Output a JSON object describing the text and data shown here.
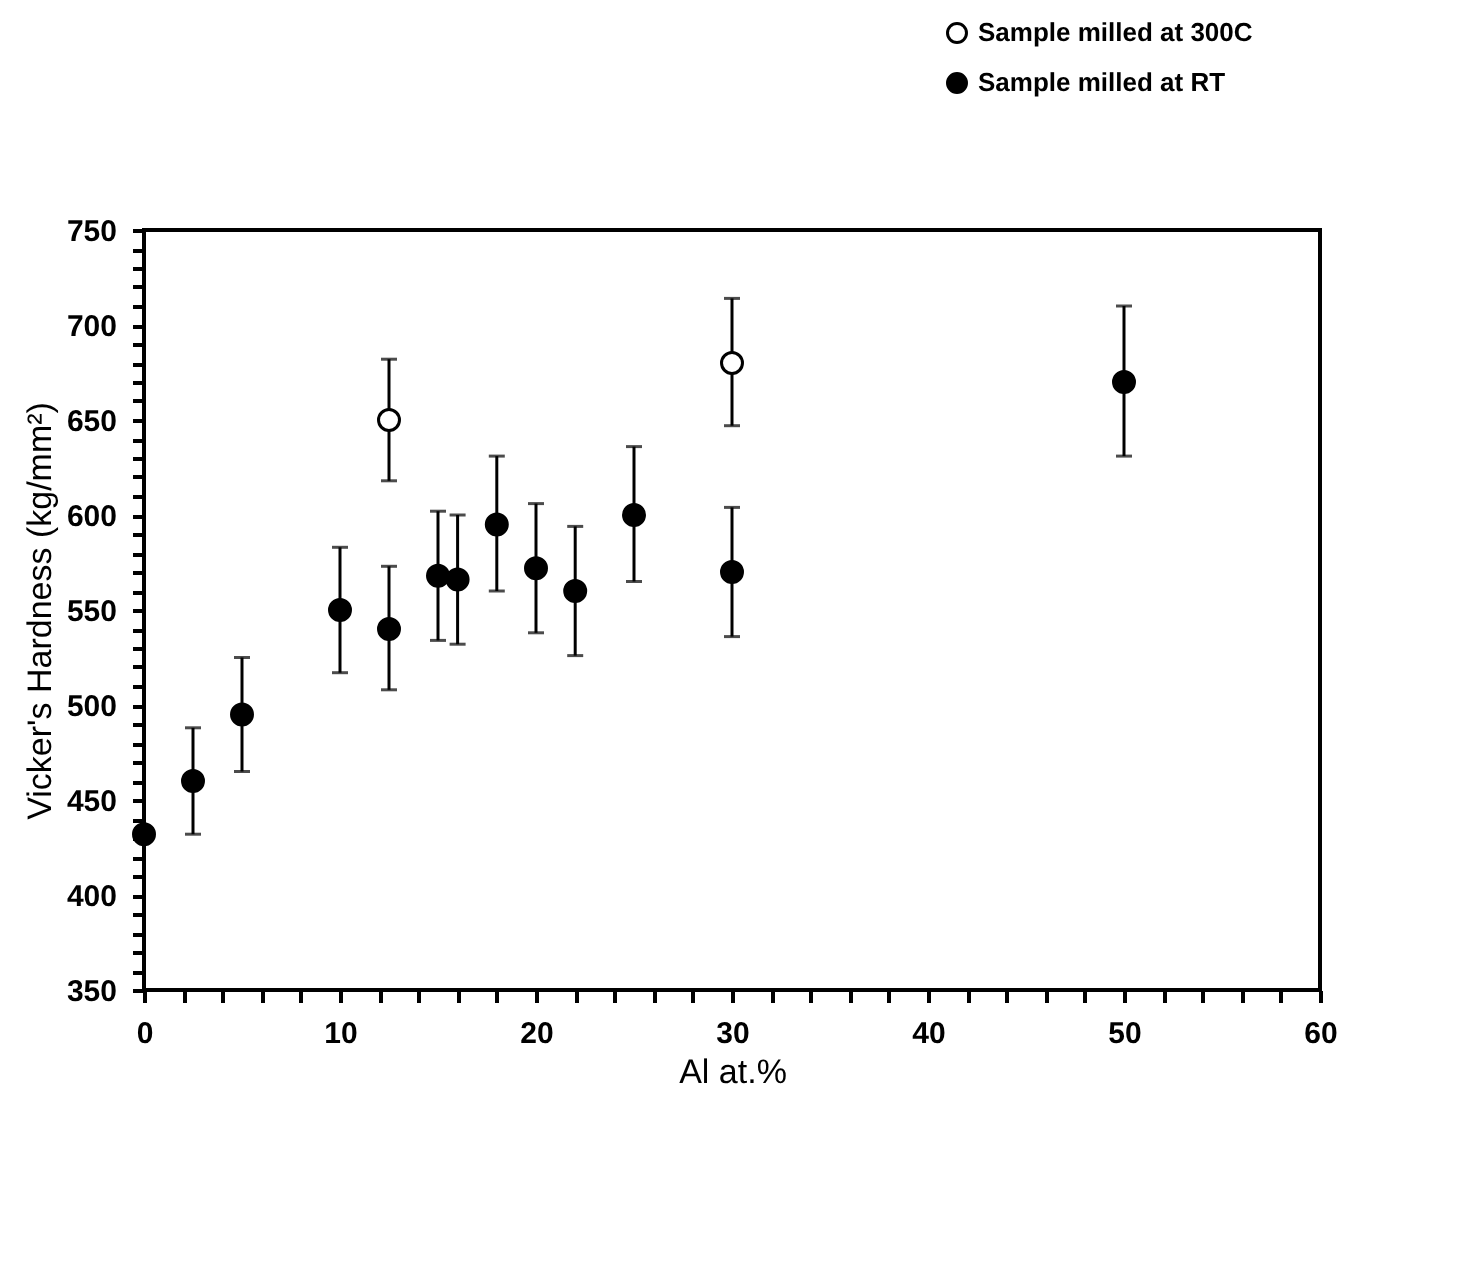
{
  "chart_data": {
    "type": "scatter",
    "xlabel": "Al at.%",
    "ylabel": "Vicker's Hardness (kg/mm²)",
    "xlim": [
      0,
      60
    ],
    "ylim": [
      350,
      750
    ],
    "xticks": [
      0,
      {
        "value": 2,
        "label": null
      },
      {
        "value": 4,
        "label": null
      },
      {
        "value": 6,
        "label": null
      },
      {
        "value": 8,
        "label": null
      },
      10,
      {
        "value": 12,
        "label": null
      },
      {
        "value": 14,
        "label": null
      },
      {
        "value": 16,
        "label": null
      },
      {
        "value": 18,
        "label": null
      },
      20,
      {
        "value": 22,
        "label": null
      },
      {
        "value": 24,
        "label": null
      },
      {
        "value": 26,
        "label": null
      },
      {
        "value": 28,
        "label": null
      },
      30,
      {
        "value": 32,
        "label": null
      },
      {
        "value": 34,
        "label": null
      },
      {
        "value": 36,
        "label": null
      },
      {
        "value": 38,
        "label": null
      },
      40,
      {
        "value": 42,
        "label": null
      },
      {
        "value": 44,
        "label": null
      },
      {
        "value": 46,
        "label": null
      },
      {
        "value": 48,
        "label": null
      },
      50,
      {
        "value": 52,
        "label": null
      },
      {
        "value": 54,
        "label": null
      },
      {
        "value": 56,
        "label": null
      },
      {
        "value": 58,
        "label": null
      },
      60
    ],
    "yticks": [
      350,
      {
        "value": 360,
        "label": null
      },
      {
        "value": 370,
        "label": null
      },
      {
        "value": 380,
        "label": null
      },
      {
        "value": 390,
        "label": null
      },
      400,
      {
        "value": 410,
        "label": null
      },
      {
        "value": 420,
        "label": null
      },
      {
        "value": 430,
        "label": null
      },
      {
        "value": 440,
        "label": null
      },
      450,
      {
        "value": 460,
        "label": null
      },
      {
        "value": 470,
        "label": null
      },
      {
        "value": 480,
        "label": null
      },
      {
        "value": 490,
        "label": null
      },
      500,
      {
        "value": 510,
        "label": null
      },
      {
        "value": 520,
        "label": null
      },
      {
        "value": 530,
        "label": null
      },
      {
        "value": 540,
        "label": null
      },
      550,
      {
        "value": 560,
        "label": null
      },
      {
        "value": 570,
        "label": null
      },
      {
        "value": 580,
        "label": null
      },
      {
        "value": 590,
        "label": null
      },
      600,
      {
        "value": 610,
        "label": null
      },
      {
        "value": 620,
        "label": null
      },
      {
        "value": 630,
        "label": null
      },
      {
        "value": 640,
        "label": null
      },
      650,
      {
        "value": 660,
        "label": null
      },
      {
        "value": 670,
        "label": null
      },
      {
        "value": 680,
        "label": null
      },
      {
        "value": 690,
        "label": null
      },
      700,
      {
        "value": 710,
        "label": null
      },
      {
        "value": 720,
        "label": null
      },
      {
        "value": 730,
        "label": null
      },
      {
        "value": 740,
        "label": null
      },
      750
    ],
    "grid": false,
    "legend": "top right",
    "marker": "circle",
    "series": [
      {
        "name": "Sample milled at 300C",
        "color": "#000000",
        "x": [
          12.5,
          30
        ],
        "values": [
          650,
          680
        ],
        "errors": [
          [
            618,
            682
          ],
          [
            647,
            714
          ]
        ]
      },
      {
        "name": "Sample milled at RT",
        "color": "#000000",
        "x": [
          0,
          2.5,
          5,
          10,
          12.5,
          15,
          16,
          18,
          20,
          22,
          25,
          30,
          50
        ],
        "values": [
          432,
          460,
          495,
          550,
          540,
          568,
          566,
          595,
          572,
          560,
          600,
          570,
          670
        ],
        "errors": [
          null,
          [
            432,
            488
          ],
          [
            465,
            525
          ],
          [
            517,
            583
          ],
          [
            508,
            573
          ],
          [
            534,
            602
          ],
          [
            532,
            600
          ],
          [
            560,
            631
          ],
          [
            538,
            606
          ],
          [
            526,
            594
          ],
          [
            565,
            636
          ],
          [
            536,
            604
          ],
          [
            631,
            710
          ]
        ]
      }
    ]
  }
}
